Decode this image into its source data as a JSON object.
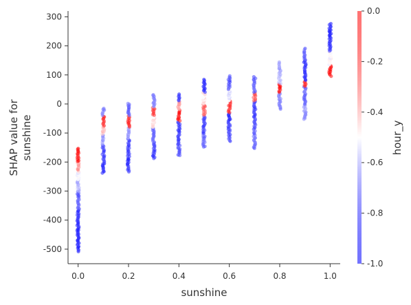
{
  "chart_data": {
    "type": "scatter",
    "title": "",
    "xlabel": "sunshine",
    "ylabel_lines": [
      "SHAP value for",
      "sunshine"
    ],
    "xlim": [
      -0.04,
      1.04
    ],
    "ylim": [
      -550,
      320
    ],
    "x_ticks": [
      0.0,
      0.2,
      0.4,
      0.6,
      0.8,
      1.0
    ],
    "x_tick_labels": [
      "0.0",
      "0.2",
      "0.4",
      "0.6",
      "0.8",
      "1.0"
    ],
    "y_ticks": [
      300,
      200,
      100,
      0,
      -100,
      -200,
      -300,
      -400,
      -500
    ],
    "y_tick_labels": [
      "300",
      "200",
      "100",
      "0",
      "-100",
      "-200",
      "-300",
      "-400",
      "-500"
    ],
    "grid": false,
    "colorbar": {
      "label": "hour_y",
      "range": [
        -1.0,
        0.0
      ],
      "ticks": [
        0.0,
        -0.2,
        -0.4,
        -0.6,
        -0.8,
        -1.0
      ],
      "tick_labels": [
        "0.0",
        "-0.2",
        "-0.4",
        "-0.6",
        "-0.8",
        "-1.0"
      ],
      "colormap": [
        "#0000ff",
        "#ffffff",
        "#ff0000"
      ]
    },
    "point_color_low": "#0000ff",
    "point_color_mid": "#ffffff",
    "point_color_high": "#ff0000",
    "columns": [
      {
        "x": 0.0,
        "segments": [
          [
            -510,
            -360,
            -0.92
          ],
          [
            -360,
            -300,
            -0.8
          ],
          [
            -300,
            -260,
            -0.65
          ],
          [
            -260,
            -230,
            -0.5
          ],
          [
            -230,
            -200,
            -0.3
          ],
          [
            -200,
            -150,
            -0.05
          ]
        ]
      },
      {
        "x": 0.1,
        "segments": [
          [
            -240,
            -190,
            -0.9
          ],
          [
            -190,
            -140,
            -0.85
          ],
          [
            -140,
            -105,
            -0.7
          ],
          [
            -105,
            -75,
            -0.35
          ],
          [
            -75,
            -40,
            -0.1
          ],
          [
            -40,
            -12,
            -0.75
          ]
        ]
      },
      {
        "x": 0.2,
        "segments": [
          [
            -235,
            -180,
            -0.9
          ],
          [
            -180,
            -120,
            -0.88
          ],
          [
            -120,
            -80,
            -0.7
          ],
          [
            -80,
            -40,
            -0.1
          ],
          [
            -40,
            5,
            -0.8
          ]
        ]
      },
      {
        "x": 0.3,
        "segments": [
          [
            -190,
            -140,
            -0.88
          ],
          [
            -140,
            -80,
            -0.8
          ],
          [
            -80,
            -40,
            -0.45
          ],
          [
            -40,
            -10,
            -0.1
          ],
          [
            -10,
            35,
            -0.75
          ]
        ]
      },
      {
        "x": 0.4,
        "segments": [
          [
            -180,
            -130,
            -0.85
          ],
          [
            -130,
            -60,
            -0.9
          ],
          [
            -60,
            -20,
            -0.05
          ],
          [
            -20,
            10,
            -0.3
          ],
          [
            10,
            35,
            -0.9
          ]
        ]
      },
      {
        "x": 0.5,
        "segments": [
          [
            -150,
            -100,
            -0.8
          ],
          [
            -100,
            -40,
            -0.88
          ],
          [
            -40,
            0,
            -0.2
          ],
          [
            0,
            40,
            -0.45
          ],
          [
            40,
            85,
            -0.9
          ]
        ]
      },
      {
        "x": 0.6,
        "segments": [
          [
            -130,
            -80,
            -0.85
          ],
          [
            -80,
            -30,
            -0.9
          ],
          [
            -30,
            10,
            -0.1
          ],
          [
            10,
            50,
            -0.55
          ],
          [
            50,
            98,
            -0.85
          ]
        ]
      },
      {
        "x": 0.7,
        "segments": [
          [
            -155,
            -90,
            -0.8
          ],
          [
            -90,
            -40,
            -0.85
          ],
          [
            -40,
            10,
            -0.88
          ],
          [
            10,
            40,
            -0.15
          ],
          [
            40,
            95,
            -0.8
          ]
        ]
      },
      {
        "x": 0.8,
        "segments": [
          [
            -20,
            40,
            -0.75
          ],
          [
            40,
            70,
            -0.05
          ],
          [
            70,
            100,
            -0.6
          ],
          [
            100,
            145,
            -0.7
          ]
        ]
      },
      {
        "x": 0.9,
        "segments": [
          [
            -55,
            0,
            -0.7
          ],
          [
            0,
            60,
            -0.8
          ],
          [
            60,
            80,
            -0.1
          ],
          [
            80,
            150,
            -0.9
          ],
          [
            150,
            192,
            -0.8
          ]
        ]
      },
      {
        "x": 1.0,
        "segments": [
          [
            95,
            135,
            -0.05
          ],
          [
            135,
            180,
            -0.5
          ],
          [
            180,
            230,
            -0.88
          ],
          [
            230,
            278,
            -0.95
          ]
        ]
      }
    ]
  }
}
